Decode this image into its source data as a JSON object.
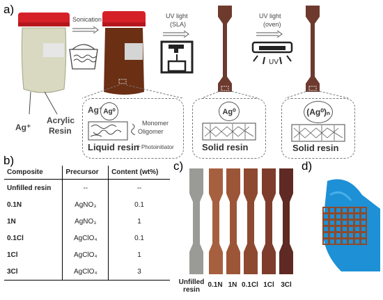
{
  "panels": {
    "a": "a)",
    "b": "b)",
    "c": "c)",
    "d": "d)"
  },
  "step_labels": {
    "sonication": "Sonication",
    "uv_sla_1": "UV light",
    "uv_sla_2": "(SLA)",
    "uv_oven_1": "UV light",
    "uv_oven_2": "(oven)",
    "uv_lamp_text": "UV"
  },
  "jar_labels": {
    "ag_plus": "Ag⁺",
    "acrylic_1": "Acrylic",
    "acrylic_2": "Resin"
  },
  "zoom_liquid": {
    "ag_plus": "Ag⁺",
    "ag0": "Ag⁰",
    "monomer": "Monomer",
    "oligomer": "Oligomer",
    "photoinitiator": "Photoinitiator",
    "title": "Liquid resin"
  },
  "zoom_solid1": {
    "ag0": "Ag⁰",
    "title": "Solid resin"
  },
  "zoom_solid2": {
    "ag0n": "(Ag⁰)ₙ",
    "title": "Solid resin"
  },
  "table": {
    "headers": [
      "Composite",
      "Precursor",
      "Content (wt%)"
    ],
    "rows": [
      [
        "Unfilled resin",
        "--",
        "--"
      ],
      [
        "0.1N",
        "AgNO₃",
        "0.1"
      ],
      [
        "1N",
        "AgNO₃",
        "1"
      ],
      [
        "0.1Cl",
        "AgClO₄",
        "0.1"
      ],
      [
        "1Cl",
        "AgClO₄",
        "1"
      ],
      [
        "3Cl",
        "AgClO₄",
        "3"
      ]
    ]
  },
  "samples": [
    "Unfilled resin",
    "0.1N",
    "1N",
    "0.1Cl",
    "1Cl",
    "3Cl"
  ],
  "sample_colors": [
    "#9a9a96",
    "#a7603f",
    "#9c5637",
    "#8e4a30",
    "#7e3d2c",
    "#5e2a23"
  ],
  "colors": {
    "cap": "#d62028",
    "milky": "#d8d9c0",
    "brown": "#6b2f14",
    "strip": "#6e3a2e",
    "glove": "#1e90d6",
    "lattice": "#8d4b2c"
  }
}
